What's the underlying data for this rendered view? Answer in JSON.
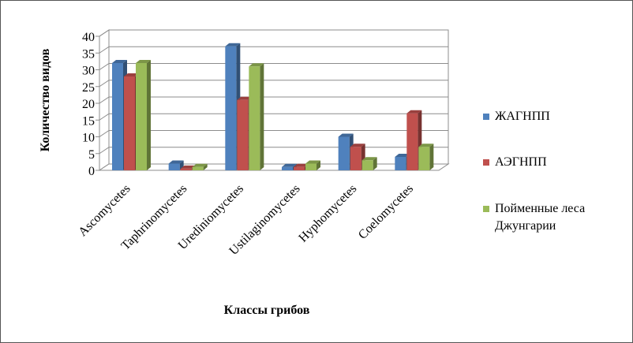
{
  "chart_data": {
    "type": "bar",
    "categories": [
      "Ascomycetes",
      "Taphrinomycetes",
      "Urediniomycetes",
      "Ustilaginomycetes",
      "Hyphomycetes",
      "Coelomycetes"
    ],
    "series": [
      {
        "name": "ЖАГНПП",
        "values": [
          32,
          2,
          37,
          1,
          10,
          4
        ],
        "color": "#4F81BD"
      },
      {
        "name": "АЭГНПП",
        "values": [
          28,
          0.5,
          21,
          1,
          7,
          17
        ],
        "color": "#C0504D"
      },
      {
        "name": "Пойменные леса Джунгарии",
        "values": [
          32,
          1,
          31,
          2,
          3,
          7
        ],
        "color": "#9BBB59"
      }
    ],
    "title": "",
    "xlabel": "Классы грибов",
    "ylabel": "Количество видов",
    "ylim": [
      0,
      40
    ],
    "yticks": [
      0,
      5,
      10,
      15,
      20,
      25,
      30,
      35,
      40
    ],
    "grid": true,
    "legend": "right",
    "style": "3d-clustered-column"
  }
}
